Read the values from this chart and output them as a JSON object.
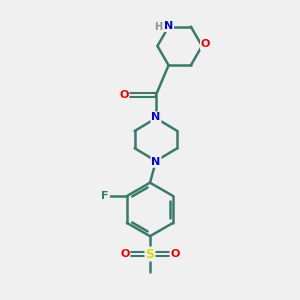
{
  "bg_color": "#f0f0f0",
  "bond_color": "#3a7a6a",
  "atom_colors": {
    "C": "#3a7a6a",
    "N": "#0000ee",
    "O": "#ee0000",
    "F": "#3a7a6a",
    "S": "#dddd00",
    "H": "#909090"
  },
  "lw": 1.8,
  "figsize": [
    3.0,
    3.0
  ],
  "dpi": 100
}
